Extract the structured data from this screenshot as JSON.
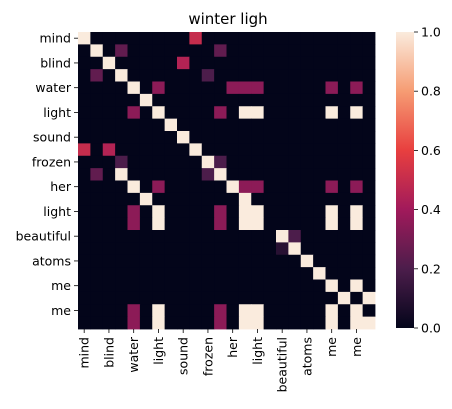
{
  "chart_data": {
    "type": "heatmap",
    "title": "winter ligh",
    "xlabel": "",
    "ylabel": "",
    "labels": [
      "mind",
      "",
      "blind",
      "",
      "water",
      "",
      "light",
      "",
      "sound",
      "",
      "frozen",
      "",
      "her",
      "",
      "light",
      "",
      "beautiful",
      "",
      "atoms",
      "",
      "me",
      "",
      "me",
      ""
    ],
    "matrix": [
      [
        1,
        0,
        0,
        0,
        0,
        0,
        0,
        0,
        0,
        0.5,
        0,
        0,
        0,
        0,
        0,
        0,
        0,
        0,
        0,
        0,
        0,
        0,
        0,
        0
      ],
      [
        0,
        1,
        0,
        0.25,
        0,
        0,
        0,
        0,
        0,
        0,
        0,
        0.25,
        0,
        0,
        0,
        0,
        0,
        0,
        0,
        0,
        0,
        0,
        0,
        0
      ],
      [
        0,
        0,
        1,
        0,
        0,
        0,
        0,
        0,
        0.45,
        0,
        0,
        0,
        0,
        0,
        0,
        0,
        0,
        0,
        0,
        0,
        0,
        0,
        0,
        0
      ],
      [
        0,
        0.25,
        0,
        1,
        0,
        0,
        0,
        0,
        0,
        0,
        0.2,
        0,
        0,
        0,
        0,
        0,
        0,
        0,
        0,
        0,
        0,
        0,
        0,
        0
      ],
      [
        0,
        0,
        0,
        0,
        1,
        0,
        0.35,
        0,
        0,
        0,
        0,
        0,
        0.35,
        0.35,
        0.35,
        0,
        0,
        0,
        0,
        0,
        0.35,
        0,
        0.35,
        0
      ],
      [
        0,
        0,
        0,
        0,
        0,
        1,
        0,
        0,
        0,
        0,
        0,
        0,
        0,
        0,
        0,
        0,
        0,
        0,
        0,
        0,
        0,
        0,
        0,
        0
      ],
      [
        0,
        0,
        0,
        0,
        0.35,
        0,
        1,
        0,
        0,
        0,
        0,
        0.35,
        0,
        1,
        1,
        0,
        0,
        0,
        0,
        0,
        1,
        0,
        1,
        0
      ],
      [
        0,
        0,
        0,
        0,
        0,
        0,
        0,
        1,
        0,
        0,
        0,
        0,
        0,
        0,
        0,
        0,
        0,
        0,
        0,
        0,
        0,
        0,
        0,
        0
      ],
      [
        0,
        0,
        0,
        0,
        0,
        0,
        0,
        0,
        1,
        0,
        0,
        0,
        0,
        0,
        0,
        0,
        0,
        0,
        0,
        0,
        0,
        0,
        0,
        0
      ],
      [
        0.5,
        0,
        0.45,
        0,
        0,
        0,
        0,
        0,
        0,
        1,
        0,
        0,
        0,
        0,
        0,
        0,
        0,
        0,
        0,
        0,
        0,
        0,
        0,
        0
      ],
      [
        0,
        0,
        0,
        0.2,
        0,
        0,
        0,
        0,
        0,
        0,
        1,
        0.2,
        0,
        0,
        0,
        0,
        0,
        0,
        0,
        0,
        0,
        0,
        0,
        0
      ],
      [
        0,
        0.25,
        0,
        1,
        0,
        0,
        0,
        0,
        0,
        0,
        0.2,
        1,
        0,
        0,
        0,
        0,
        0,
        0,
        0,
        0,
        0,
        0,
        0,
        0
      ],
      [
        0,
        0,
        0,
        0,
        1,
        0,
        0.35,
        0,
        0,
        0,
        0,
        0,
        1,
        0.35,
        0.35,
        0,
        0,
        0,
        0,
        0,
        0.35,
        0,
        0.35,
        0
      ],
      [
        0,
        0,
        0,
        0,
        0,
        1,
        0,
        0,
        0,
        0,
        0,
        0,
        0,
        1,
        0,
        0,
        0,
        0,
        0,
        0,
        0,
        0,
        0,
        0
      ],
      [
        0,
        0,
        0,
        0,
        0.35,
        0,
        1,
        0,
        0,
        0,
        0,
        0.35,
        0,
        1,
        1,
        0,
        0,
        0,
        0,
        0,
        1,
        0,
        1,
        0
      ],
      [
        0,
        0,
        0,
        0,
        0.35,
        0,
        1,
        0,
        0,
        0,
        0,
        0.35,
        0,
        1,
        1,
        0,
        0,
        0,
        0,
        0,
        1,
        0,
        1,
        0
      ],
      [
        0,
        0,
        0,
        0,
        0,
        0,
        0,
        0,
        0,
        0,
        0,
        0,
        0,
        0,
        0,
        0,
        1,
        0.2,
        0,
        0,
        0,
        0,
        0,
        0
      ],
      [
        0,
        0,
        0,
        0,
        0,
        0,
        0,
        0,
        0,
        0,
        0,
        0,
        0,
        0,
        0,
        0,
        0.1,
        1,
        0,
        0,
        0,
        0,
        0,
        0
      ],
      [
        0,
        0,
        0,
        0,
        0,
        0,
        0,
        0,
        0,
        0,
        0,
        0,
        0,
        0,
        0,
        0,
        0,
        0,
        1,
        0,
        0,
        0,
        0,
        0
      ],
      [
        0,
        0,
        0,
        0,
        0,
        0,
        0,
        0,
        0,
        0,
        0,
        0,
        0,
        0,
        0,
        0,
        0,
        0,
        0,
        1,
        0,
        0,
        0,
        0
      ],
      [
        0,
        0,
        0,
        0,
        0,
        0,
        0,
        0,
        0,
        0,
        0,
        0,
        0,
        0,
        0,
        0,
        0,
        0,
        0,
        0,
        1,
        0,
        1,
        0
      ],
      [
        0,
        0,
        0,
        0,
        0,
        0,
        0,
        0,
        0,
        0,
        0,
        0,
        0,
        0,
        0,
        0,
        0,
        0,
        0,
        0,
        0,
        1,
        0,
        1
      ],
      [
        0,
        0,
        0,
        0,
        0.35,
        0,
        1,
        0,
        0,
        0,
        0,
        0.35,
        0,
        1,
        1,
        0,
        0,
        0,
        0,
        0,
        1,
        0,
        1,
        0
      ],
      [
        0,
        0,
        0,
        0,
        0.35,
        0,
        1,
        0,
        0,
        0,
        0,
        0.35,
        0,
        1,
        1,
        0,
        0,
        0,
        0,
        0,
        1,
        0,
        1,
        1
      ]
    ],
    "vmin": 0,
    "vmax": 1,
    "colorbar_ticks": [
      "0.0",
      "0.2",
      "0.4",
      "0.6",
      "0.8",
      "1.0"
    ],
    "colormap": "rocket",
    "colormap_stops": [
      "#03051a",
      "#4c1d4b",
      "#a11a5b",
      "#e83f3f",
      "#f69c73",
      "#faebdd"
    ],
    "grid": false
  }
}
